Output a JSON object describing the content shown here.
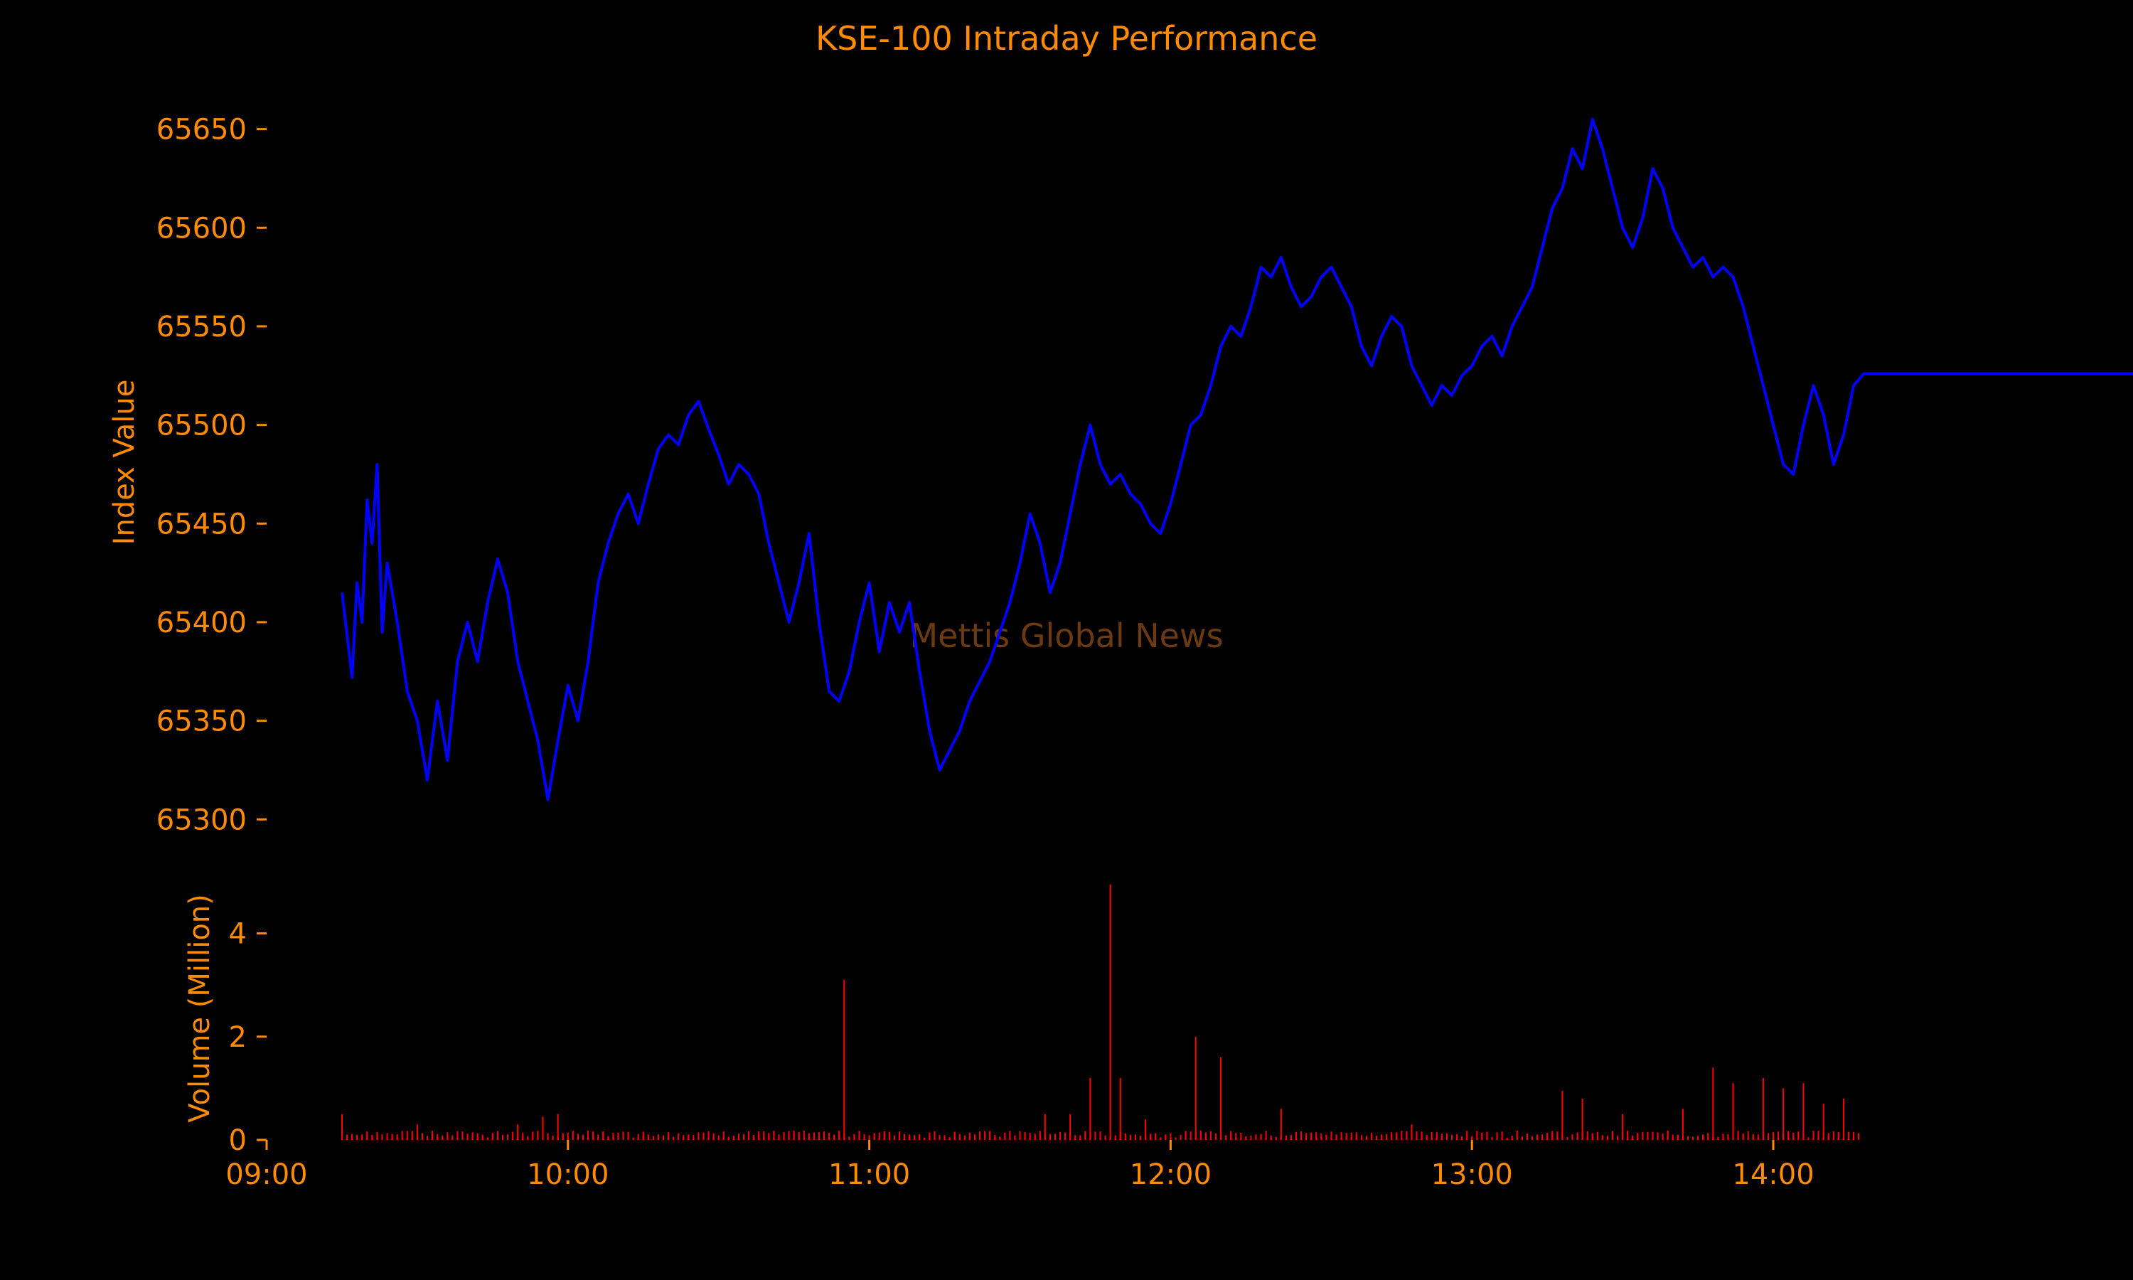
{
  "chart_data": {
    "type": "line",
    "title": "KSE-100 Intraday Performance",
    "watermark": "Mettis Global News",
    "grid": false,
    "colors": {
      "background": "#000000",
      "text": "#ff8c00",
      "price_line": "#0000ff",
      "volume_bars": "#ff0000",
      "watermark": "#6b3a12"
    },
    "x_axis": {
      "range": [
        "09:00",
        "14:15"
      ],
      "ticks": [
        "09:00",
        "10:00",
        "11:00",
        "12:00",
        "13:00",
        "14:00"
      ]
    },
    "price_panel": {
      "ylabel": "Index Value",
      "ylim": [
        65290,
        65665
      ],
      "yticks": [
        "65300",
        "65350",
        "65400",
        "65450",
        "65500",
        "65550",
        "65600",
        "65650"
      ],
      "series": [
        {
          "points": [
            [
              "09:15",
              65415
            ],
            [
              "09:17",
              65372
            ],
            [
              "09:18",
              65420
            ],
            [
              "09:19",
              65400
            ],
            [
              "09:20",
              65462
            ],
            [
              "09:21",
              65440
            ],
            [
              "09:22",
              65480
            ],
            [
              "09:23",
              65395
            ],
            [
              "09:24",
              65430
            ],
            [
              "09:26",
              65400
            ],
            [
              "09:28",
              65365
            ],
            [
              "09:30",
              65350
            ],
            [
              "09:32",
              65320
            ],
            [
              "09:34",
              65360
            ],
            [
              "09:36",
              65330
            ],
            [
              "09:38",
              65380
            ],
            [
              "09:40",
              65400
            ],
            [
              "09:42",
              65380
            ],
            [
              "09:44",
              65410
            ],
            [
              "09:46",
              65432
            ],
            [
              "09:48",
              65415
            ],
            [
              "09:50",
              65380
            ],
            [
              "09:52",
              65360
            ],
            [
              "09:54",
              65340
            ],
            [
              "09:56",
              65310
            ],
            [
              "09:58",
              65340
            ],
            [
              "10:00",
              65368
            ],
            [
              "10:02",
              65350
            ],
            [
              "10:04",
              65380
            ],
            [
              "10:06",
              65420
            ],
            [
              "10:08",
              65440
            ],
            [
              "10:10",
              65455
            ],
            [
              "10:12",
              65465
            ],
            [
              "10:14",
              65450
            ],
            [
              "10:16",
              65470
            ],
            [
              "10:18",
              65488
            ],
            [
              "10:20",
              65495
            ],
            [
              "10:22",
              65490
            ],
            [
              "10:24",
              65505
            ],
            [
              "10:26",
              65512
            ],
            [
              "10:28",
              65498
            ],
            [
              "10:30",
              65485
            ],
            [
              "10:32",
              65470
            ],
            [
              "10:34",
              65480
            ],
            [
              "10:36",
              65475
            ],
            [
              "10:38",
              65465
            ],
            [
              "10:40",
              65440
            ],
            [
              "10:42",
              65420
            ],
            [
              "10:44",
              65400
            ],
            [
              "10:46",
              65420
            ],
            [
              "10:48",
              65445
            ],
            [
              "10:50",
              65400
            ],
            [
              "10:52",
              65365
            ],
            [
              "10:54",
              65360
            ],
            [
              "10:56",
              65375
            ],
            [
              "10:58",
              65400
            ],
            [
              "11:00",
              65420
            ],
            [
              "11:02",
              65385
            ],
            [
              "11:04",
              65410
            ],
            [
              "11:06",
              65395
            ],
            [
              "11:08",
              65410
            ],
            [
              "11:10",
              65375
            ],
            [
              "11:12",
              65345
            ],
            [
              "11:14",
              65325
            ],
            [
              "11:16",
              65335
            ],
            [
              "11:18",
              65345
            ],
            [
              "11:20",
              65360
            ],
            [
              "11:22",
              65370
            ],
            [
              "11:24",
              65380
            ],
            [
              "11:26",
              65395
            ],
            [
              "11:28",
              65410
            ],
            [
              "11:30",
              65430
            ],
            [
              "11:32",
              65455
            ],
            [
              "11:34",
              65440
            ],
            [
              "11:36",
              65415
            ],
            [
              "11:38",
              65430
            ],
            [
              "11:40",
              65455
            ],
            [
              "11:42",
              65480
            ],
            [
              "11:44",
              65500
            ],
            [
              "11:46",
              65480
            ],
            [
              "11:48",
              65470
            ],
            [
              "11:50",
              65475
            ],
            [
              "11:52",
              65465
            ],
            [
              "11:54",
              65460
            ],
            [
              "11:56",
              65450
            ],
            [
              "11:58",
              65445
            ],
            [
              "12:00",
              65460
            ],
            [
              "12:02",
              65480
            ],
            [
              "12:04",
              65500
            ],
            [
              "12:06",
              65505
            ],
            [
              "12:08",
              65520
            ],
            [
              "12:10",
              65540
            ],
            [
              "12:12",
              65550
            ],
            [
              "12:14",
              65545
            ],
            [
              "12:16",
              65560
            ],
            [
              "12:18",
              65580
            ],
            [
              "12:20",
              65575
            ],
            [
              "12:22",
              65585
            ],
            [
              "12:24",
              65570
            ],
            [
              "12:26",
              65560
            ],
            [
              "12:28",
              65565
            ],
            [
              "12:30",
              65575
            ],
            [
              "12:32",
              65580
            ],
            [
              "12:34",
              65570
            ],
            [
              "12:36",
              65560
            ],
            [
              "12:38",
              65540
            ],
            [
              "12:40",
              65530
            ],
            [
              "12:42",
              65545
            ],
            [
              "12:44",
              65555
            ],
            [
              "12:46",
              65550
            ],
            [
              "12:48",
              65530
            ],
            [
              "12:50",
              65520
            ],
            [
              "12:52",
              65510
            ],
            [
              "12:54",
              65520
            ],
            [
              "12:56",
              65515
            ],
            [
              "12:58",
              65525
            ],
            [
              "13:00",
              65530
            ],
            [
              "13:02",
              65540
            ],
            [
              "13:04",
              65545
            ],
            [
              "13:06",
              65535
            ],
            [
              "13:08",
              65550
            ],
            [
              "13:10",
              65560
            ],
            [
              "13:12",
              65570
            ],
            [
              "13:14",
              65590
            ],
            [
              "13:16",
              65610
            ],
            [
              "13:18",
              65620
            ],
            [
              "13:20",
              65640
            ],
            [
              "13:22",
              65630
            ],
            [
              "13:24",
              65655
            ],
            [
              "13:26",
              65640
            ],
            [
              "13:28",
              65620
            ],
            [
              "13:30",
              65600
            ],
            [
              "13:32",
              65590
            ],
            [
              "13:34",
              65605
            ],
            [
              "13:36",
              65630
            ],
            [
              "13:38",
              65620
            ],
            [
              "13:40",
              65600
            ],
            [
              "13:42",
              65590
            ],
            [
              "13:44",
              65580
            ],
            [
              "13:46",
              65585
            ],
            [
              "13:48",
              65575
            ],
            [
              "13:50",
              65580
            ],
            [
              "13:52",
              65575
            ],
            [
              "13:54",
              65560
            ],
            [
              "13:56",
              65540
            ],
            [
              "13:58",
              65520
            ],
            [
              "14:00",
              65500
            ],
            [
              "14:02",
              65480
            ],
            [
              "14:04",
              65475
            ],
            [
              "14:06",
              65500
            ],
            [
              "14:08",
              65520
            ],
            [
              "14:10",
              65505
            ],
            [
              "14:12",
              65480
            ],
            [
              "14:14",
              65495
            ],
            [
              "14:16",
              65520
            ],
            [
              "14:18",
              65526
            ],
            [
              "14:20",
              65526
            ],
            [
              "14:25",
              65526
            ],
            [
              "14:30",
              65526
            ],
            [
              "14:35",
              65526
            ],
            [
              "14:40",
              65526
            ],
            [
              "14:45",
              65526
            ],
            [
              "14:50",
              65526
            ],
            [
              "14:55",
              65526
            ],
            [
              "15:00",
              65526
            ],
            [
              "15:05",
              65526
            ],
            [
              "15:10",
              65526
            ],
            [
              "15:14",
              65526
            ]
          ]
        }
      ]
    },
    "volume_panel": {
      "ylabel": "Volume (Million)",
      "ylim": [
        0,
        5
      ],
      "yticks": [
        "0",
        "2",
        "4"
      ],
      "spikes": [
        [
          "09:15",
          0.5
        ],
        [
          "09:30",
          0.3
        ],
        [
          "09:50",
          0.3
        ],
        [
          "09:55",
          0.45
        ],
        [
          "09:58",
          0.5
        ],
        [
          "10:55",
          3.1
        ],
        [
          "11:35",
          0.5
        ],
        [
          "11:40",
          0.5
        ],
        [
          "11:44",
          1.2
        ],
        [
          "11:48",
          4.95
        ],
        [
          "11:50",
          1.2
        ],
        [
          "11:55",
          0.4
        ],
        [
          "12:05",
          2.0
        ],
        [
          "12:10",
          1.6
        ],
        [
          "12:22",
          0.6
        ],
        [
          "12:48",
          0.3
        ],
        [
          "13:18",
          0.95
        ],
        [
          "13:22",
          0.8
        ],
        [
          "13:30",
          0.5
        ],
        [
          "13:42",
          0.6
        ],
        [
          "13:48",
          1.4
        ],
        [
          "13:52",
          1.1
        ],
        [
          "13:58",
          1.2
        ],
        [
          "14:02",
          1.0
        ],
        [
          "14:06",
          1.1
        ],
        [
          "14:10",
          0.7
        ],
        [
          "14:14",
          0.8
        ]
      ],
      "base_level": 0.12,
      "active_range": [
        "09:16",
        "14:17"
      ]
    }
  }
}
